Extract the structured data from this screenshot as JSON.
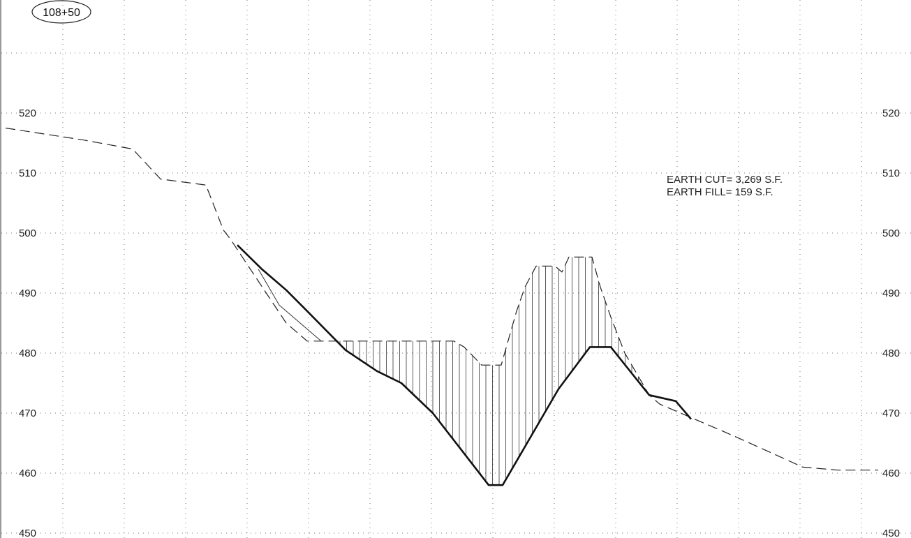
{
  "station": "108+50",
  "notes": {
    "cut": "EARTH CUT= 3,269 S.F.",
    "fill": "EARTH FILL= 159 S.F."
  },
  "chart_data": {
    "type": "line",
    "ylim": [
      450,
      530
    ],
    "y_ticks": [
      "450",
      "460",
      "470",
      "480",
      "490",
      "500",
      "510",
      "520"
    ],
    "grid": true,
    "series": [
      {
        "style": "dashed",
        "points": [
          [
            8,
            517.5
          ],
          [
            120,
            515.5
          ],
          [
            190,
            514
          ],
          [
            230,
            509
          ],
          [
            295,
            508
          ],
          [
            320,
            500.5
          ],
          [
            330,
            499
          ],
          [
            410,
            485
          ],
          [
            440,
            482
          ],
          [
            650,
            482
          ],
          [
            665,
            481
          ],
          [
            690,
            478
          ],
          [
            718,
            478
          ],
          [
            740,
            487
          ],
          [
            752,
            491
          ],
          [
            768,
            494.5
          ],
          [
            795,
            494.5
          ],
          [
            805,
            493.5
          ],
          [
            815,
            496
          ],
          [
            848,
            496
          ],
          [
            860,
            491
          ],
          [
            875,
            486
          ],
          [
            895,
            480
          ],
          [
            930,
            473
          ],
          [
            945,
            471.5
          ],
          [
            985,
            469.5
          ],
          [
            1055,
            466
          ],
          [
            1150,
            461
          ],
          [
            1200,
            460.5
          ],
          [
            1258,
            460.5
          ]
        ]
      },
      {
        "style": "solid",
        "points": [
          [
            340,
            498
          ],
          [
            375,
            494
          ],
          [
            410,
            490.5
          ],
          [
            440,
            487
          ],
          [
            495,
            480.5
          ],
          [
            540,
            477
          ],
          [
            575,
            475
          ],
          [
            620,
            470
          ],
          [
            660,
            464
          ],
          [
            700,
            458
          ],
          [
            720,
            458
          ],
          [
            760,
            466
          ],
          [
            800,
            474
          ],
          [
            845,
            481
          ],
          [
            875,
            481
          ],
          [
            930,
            473
          ],
          [
            968,
            472
          ],
          [
            990,
            469
          ]
        ]
      },
      {
        "style": "thin",
        "points": [
          [
            370,
            494
          ],
          [
            400,
            488
          ],
          [
            460,
            482
          ]
        ]
      }
    ]
  }
}
